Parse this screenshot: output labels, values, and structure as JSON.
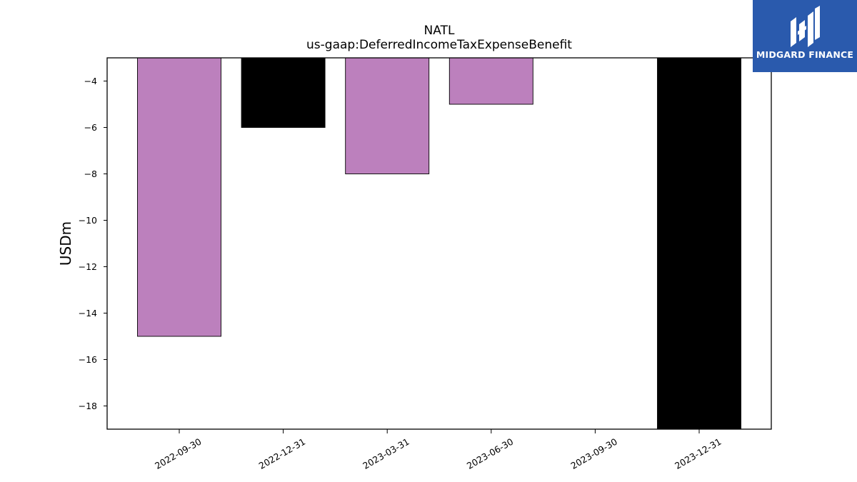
{
  "chart_data": {
    "type": "bar",
    "title": "NATL",
    "subtitle": "us-gaap:DeferredIncomeTaxExpenseBenefit",
    "xlabel": "",
    "ylabel": "USDm",
    "categories": [
      "2022-09-30",
      "2022-12-31",
      "2023-03-31",
      "2023-06-30",
      "2023-09-30",
      "2023-12-31"
    ],
    "values": [
      -15,
      -6,
      -8,
      -5,
      null,
      -19
    ],
    "bar_colors": [
      "#bc80bd",
      "#000000",
      "#bc80bd",
      "#bc80bd",
      "#bc80bd",
      "#000000"
    ],
    "ylim": [
      -19,
      -3
    ],
    "yticks": [
      -4,
      -6,
      -8,
      -10,
      -12,
      -14,
      -16,
      -18
    ],
    "ytick_labels": [
      "−4",
      "−6",
      "−8",
      "−10",
      "−12",
      "−14",
      "−16",
      "−18"
    ],
    "grid": false,
    "legend": "none"
  },
  "logo": {
    "text": "MIDGARD FINANCE",
    "background": "#2a5aad",
    "icon": "midgard-logo-icon"
  }
}
